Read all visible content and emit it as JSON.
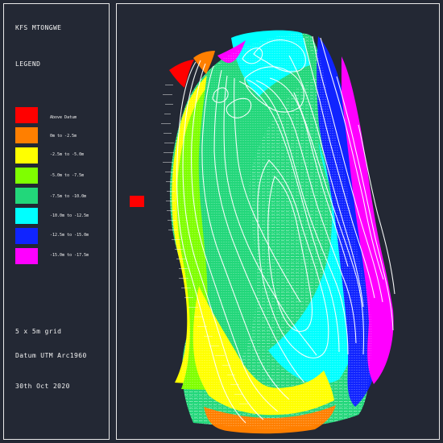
{
  "title": "KFS MTONGWE",
  "legend": {
    "heading": "LEGEND",
    "items": [
      {
        "label": "Above Datum",
        "color": "#ff0000"
      },
      {
        "label": "0m to -2.5m",
        "color": "#ff7f00"
      },
      {
        "label": "-2.5m to -5.0m",
        "color": "#ffff00"
      },
      {
        "label": "-5.0m to -7.5m",
        "color": "#7fff00"
      },
      {
        "label": "-7.5m to -10.0m",
        "color": "#22d77a"
      },
      {
        "label": "-10.0m to -12.5m",
        "color": "#00ffff"
      },
      {
        "label": "-12.5m to -15.0m",
        "color": "#1024ff"
      },
      {
        "label": "-15.0m to -17.5m",
        "color": "#ff00ff"
      }
    ]
  },
  "notes": {
    "grid": "5 x 5m grid",
    "datum": "Datum UTM Arc1960",
    "date": "30th Oct 2020"
  }
}
